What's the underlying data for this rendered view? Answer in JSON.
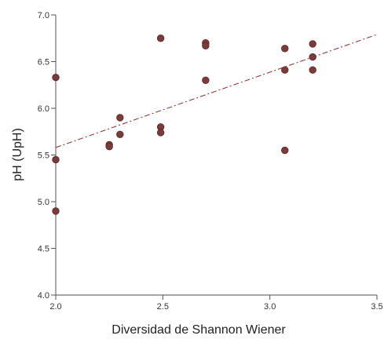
{
  "chart_data": {
    "type": "scatter",
    "title": "",
    "xlabel": "Diversidad de Shannon Wiener",
    "ylabel": "pH (UpH)",
    "xlim": [
      2.0,
      3.5
    ],
    "ylim": [
      4.0,
      7.0
    ],
    "x_ticks": [
      "2.0",
      "2.5",
      "3.0",
      "3.5"
    ],
    "y_ticks": [
      "4.0",
      "4.5",
      "5.0",
      "5.5",
      "6.0",
      "6.5",
      "7.0"
    ],
    "grid": false,
    "legend": "none",
    "series": [
      {
        "color": "#7a3b3b",
        "points": [
          {
            "x": 2.0,
            "y": 6.33
          },
          {
            "x": 2.0,
            "y": 5.45
          },
          {
            "x": 2.0,
            "y": 4.9
          },
          {
            "x": 2.25,
            "y": 5.61
          },
          {
            "x": 2.25,
            "y": 5.59
          },
          {
            "x": 2.3,
            "y": 5.9
          },
          {
            "x": 2.3,
            "y": 5.72
          },
          {
            "x": 2.49,
            "y": 6.75
          },
          {
            "x": 2.49,
            "y": 5.8
          },
          {
            "x": 2.49,
            "y": 5.74
          },
          {
            "x": 2.7,
            "y": 6.7
          },
          {
            "x": 2.7,
            "y": 6.67
          },
          {
            "x": 2.7,
            "y": 6.3
          },
          {
            "x": 3.07,
            "y": 6.64
          },
          {
            "x": 3.07,
            "y": 6.41
          },
          {
            "x": 3.07,
            "y": 5.55
          },
          {
            "x": 3.2,
            "y": 6.69
          },
          {
            "x": 3.2,
            "y": 6.55
          },
          {
            "x": 3.2,
            "y": 6.41
          }
        ]
      }
    ],
    "trendline": {
      "style": "dash-dot",
      "color": "#8b2a2a",
      "x": [
        2.0,
        3.5
      ],
      "y": [
        5.58,
        6.79
      ]
    }
  }
}
